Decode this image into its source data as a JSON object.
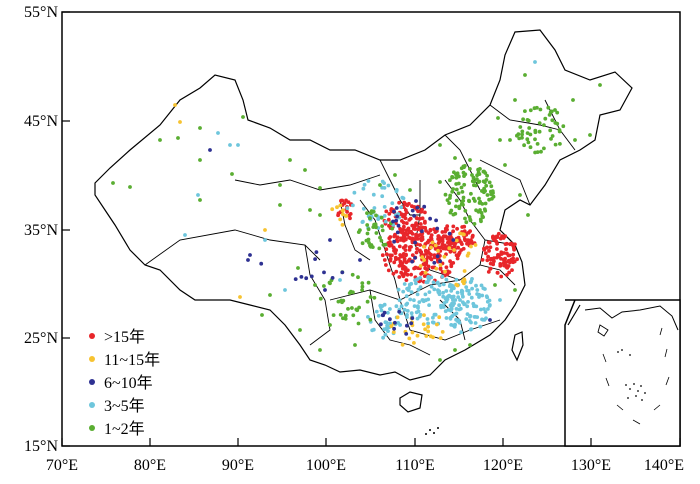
{
  "axes": {
    "lat_ticks": [
      "55°N",
      "45°N",
      "35°N",
      "25°N",
      "15°N"
    ],
    "lon_ticks": [
      "70°E",
      "80°E",
      "90°E",
      "100°E",
      "110°E",
      "120°E",
      "130°E",
      "140°E"
    ]
  },
  "legend": [
    {
      "label": ">15年",
      "color": "#e8262a"
    },
    {
      "label": "11~15年",
      "color": "#f7c331"
    },
    {
      "label": "6~10年",
      "color": "#2e3192"
    },
    {
      "label": "3~5年",
      "color": "#6ec6dc"
    },
    {
      "label": "1~2年",
      "color": "#5aae32"
    }
  ]
}
